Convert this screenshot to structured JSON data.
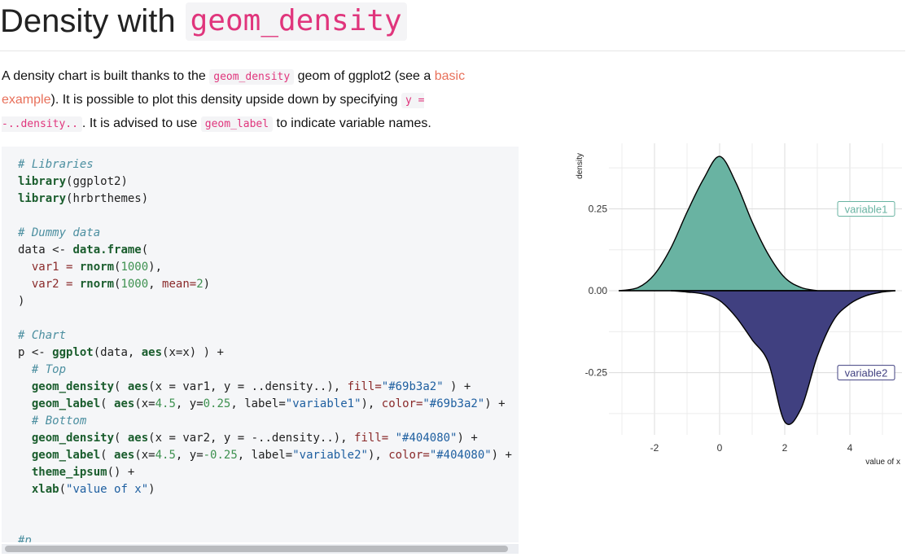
{
  "header": {
    "title_text": "Density with",
    "title_code": "geom_density"
  },
  "intro": {
    "p1": "A density chart is built thanks to the ",
    "code1": "geom_density",
    "p2": " geom of ggplot2 (see a ",
    "link": "basic example",
    "p3": "). It is possible to plot this density upside down by specifying ",
    "code2": "y = -..density..",
    "p4": ". It is advised to use ",
    "code3": "geom_label",
    "p5": " to indicate variable names."
  },
  "code": {
    "l1_comment": "# Libraries",
    "l2_fn": "library",
    "l2_rest": "(ggplot2)",
    "l3_fn": "library",
    "l3_rest": "(hrbrthemes)",
    "l5_comment": "# Dummy data",
    "l6_a": "data <- ",
    "l6_fn": "data.frame",
    "l6_b": "(",
    "l7_a": "  var1 = ",
    "l7_fn": "rnorm",
    "l7_b": "(",
    "l7_num": "1000",
    "l7_c": "),",
    "l8_a": "  var2 = ",
    "l8_fn": "rnorm",
    "l8_b": "(",
    "l8_num": "1000",
    "l8_c": ", ",
    "l8_par": "mean=",
    "l8_num2": "2",
    "l8_d": ")",
    "l9": ")",
    "l11_comment": "# Chart",
    "l12_a": "p <- ",
    "l12_fn": "ggplot",
    "l12_b": "(data, ",
    "l12_fn2": "aes",
    "l12_c": "(x=x) ) +",
    "l13_comment": "  # Top",
    "l14_fn": "  geom_density",
    "l14_b": "( ",
    "l14_fn2": "aes",
    "l14_c": "(x = var1, y = ..density..), ",
    "l14_par": "fill=",
    "l14_str": "\"#69b3a2\"",
    "l14_d": " ) +",
    "l15_fn": "  geom_label",
    "l15_b": "( ",
    "l15_fn2": "aes",
    "l15_c": "(x=",
    "l15_n1": "4.5",
    "l15_d": ", y=",
    "l15_n2": "0.25",
    "l15_e": ", label=",
    "l15_s1": "\"variable1\"",
    "l15_f": "), ",
    "l15_par": "color=",
    "l15_s2": "\"#69b3a2\"",
    "l15_g": ") +",
    "l16_comment": "  # Bottom",
    "l17_fn": "  geom_density",
    "l17_b": "( ",
    "l17_fn2": "aes",
    "l17_c": "(x = var2, y = -..density..), ",
    "l17_par": "fill=",
    "l17_str": " \"#404080\"",
    "l17_d": ") +",
    "l18_fn": "  geom_label",
    "l18_b": "( ",
    "l18_fn2": "aes",
    "l18_c": "(x=",
    "l18_n1": "4.5",
    "l18_d": ", y=",
    "l18_n2": "-0.25",
    "l18_e": ", label=",
    "l18_s1": "\"variable2\"",
    "l18_f": "), ",
    "l18_par": "color=",
    "l18_s2": "\"#404080\"",
    "l18_g": ") +",
    "l19_fn": "  theme_ipsum",
    "l19_b": "() +",
    "l20_fn": "  xlab",
    "l20_b": "(",
    "l20_s": "\"value of x\"",
    "l20_c": ")",
    "l22_comment": "#p"
  },
  "chart_data": {
    "type": "area",
    "xlabel": "value of x",
    "ylabel": "density",
    "xlim": [
      -3.4,
      5.6
    ],
    "ylim": [
      -0.44,
      0.45
    ],
    "x_ticks": [
      -2,
      0,
      2,
      4
    ],
    "y_ticks": [
      0.25,
      0.0,
      -0.25
    ],
    "y_tick_labels": [
      "0.25",
      "0.00",
      "-0.25"
    ],
    "grid": true,
    "series": [
      {
        "name": "variable1",
        "color": "#69b3a2",
        "x": [
          -3.1,
          -2.5,
          -2.0,
          -1.5,
          -1.0,
          -0.5,
          0.0,
          0.5,
          1.0,
          1.5,
          2.0,
          2.5,
          3.0
        ],
        "y": [
          0.0,
          0.01,
          0.05,
          0.13,
          0.24,
          0.34,
          0.41,
          0.33,
          0.21,
          0.11,
          0.04,
          0.01,
          0.0
        ]
      },
      {
        "name": "variable2",
        "color": "#404080",
        "x": [
          -1.5,
          -1.0,
          -0.5,
          0.0,
          0.5,
          1.0,
          1.5,
          2.0,
          2.5,
          3.0,
          3.5,
          4.0,
          4.5,
          5.0,
          5.4
        ],
        "y": [
          0.0,
          -0.004,
          -0.01,
          -0.03,
          -0.08,
          -0.15,
          -0.22,
          -0.4,
          -0.36,
          -0.2,
          -0.09,
          -0.04,
          -0.015,
          -0.004,
          0.0
        ]
      }
    ],
    "labels": [
      {
        "text": "variable1",
        "x": 4.5,
        "y": 0.25,
        "color": "#69b3a2"
      },
      {
        "text": "variable2",
        "x": 4.5,
        "y": -0.25,
        "color": "#404080"
      }
    ]
  }
}
